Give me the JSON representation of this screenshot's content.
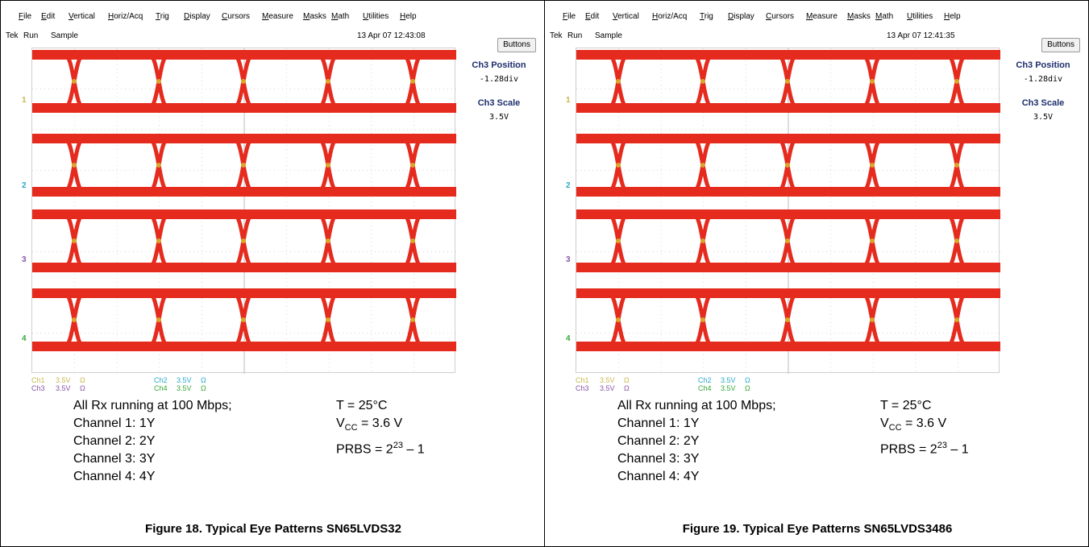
{
  "colors": {
    "trace": "#e52a1e",
    "trace_yellow": "#d8c62a",
    "ch1": "#c8b84c",
    "ch2": "#2aa8c8",
    "ch3": "#8855aa",
    "ch4": "#3aa83a",
    "title_blue": "#1d2f6d"
  },
  "menu": [
    "File",
    "Edit",
    "Vertical",
    "Horiz/Acq",
    "Trig",
    "Display",
    "Cursors",
    "Measure",
    "Masks",
    "Math",
    "Utilities",
    "Help"
  ],
  "panels": [
    {
      "status": {
        "tek": "Tek",
        "run": "Run",
        "mode": "Sample"
      },
      "timestamp": "13 Apr 07 12:43:08",
      "buttons_label": "Buttons",
      "side": {
        "pos_label": "Ch3 Position",
        "pos_value": "-1.28div",
        "scale_label": "Ch3 Scale",
        "scale_value": "3.5V"
      },
      "markers": [
        "1",
        "2",
        "3",
        "4"
      ],
      "readouts": {
        "ch1": "Ch1",
        "ch1_v": "3.5V",
        "ch1_o": "Ω",
        "ch2": "Ch2",
        "ch2_v": "3.5V",
        "ch2_o": "Ω",
        "ch3": "Ch3",
        "ch3_v": "3.5V",
        "ch3_o": "Ω",
        "ch4": "Ch4",
        "ch4_v": "3.5V",
        "ch4_o": "Ω"
      },
      "caption": {
        "l1": "All Rx running at 100 Mbps;",
        "l2": "Channel 1: 1Y",
        "l3": "Channel 2: 2Y",
        "l4": "Channel 3: 3Y",
        "l5": "Channel 4: 4Y",
        "t": "T = 25°C",
        "vcc_v": "V",
        "vcc_sub": "CC",
        "vcc_rest": " = 3.6 V",
        "prbs_a": "PRBS = 2",
        "prbs_sup": "23",
        "prbs_b": " – 1"
      },
      "figure_title": "Figure 18. Typical Eye Patterns SN65LVDS32"
    },
    {
      "status": {
        "tek": "Tek",
        "run": "Run",
        "mode": "Sample"
      },
      "timestamp": "13 Apr 07 12:41:35",
      "buttons_label": "Buttons",
      "side": {
        "pos_label": "Ch3 Position",
        "pos_value": "-1.28div",
        "scale_label": "Ch3 Scale",
        "scale_value": "3.5V"
      },
      "markers": [
        "1",
        "2",
        "3",
        "4"
      ],
      "readouts": {
        "ch1": "Ch1",
        "ch1_v": "3.5V",
        "ch1_o": "Ω",
        "ch2": "Ch2",
        "ch2_v": "3.5V",
        "ch2_o": "Ω",
        "ch3": "Ch3",
        "ch3_v": "3.5V",
        "ch3_o": "Ω",
        "ch4": "Ch4",
        "ch4_v": "3.5V",
        "ch4_o": "Ω"
      },
      "caption": {
        "l1": "All Rx running at 100 Mbps;",
        "l2": "Channel 1: 1Y",
        "l3": "Channel 2: 2Y",
        "l4": "Channel 3: 3Y",
        "l5": "Channel 4: 4Y",
        "t": "T = 25°C",
        "vcc_v": "V",
        "vcc_sub": "CC",
        "vcc_rest": " = 3.6 V",
        "prbs_a": "PRBS = 2",
        "prbs_sup": "23",
        "prbs_b": " – 1"
      },
      "figure_title": "Figure 19. Typical Eye Patterns SN65LVDS3486"
    }
  ]
}
